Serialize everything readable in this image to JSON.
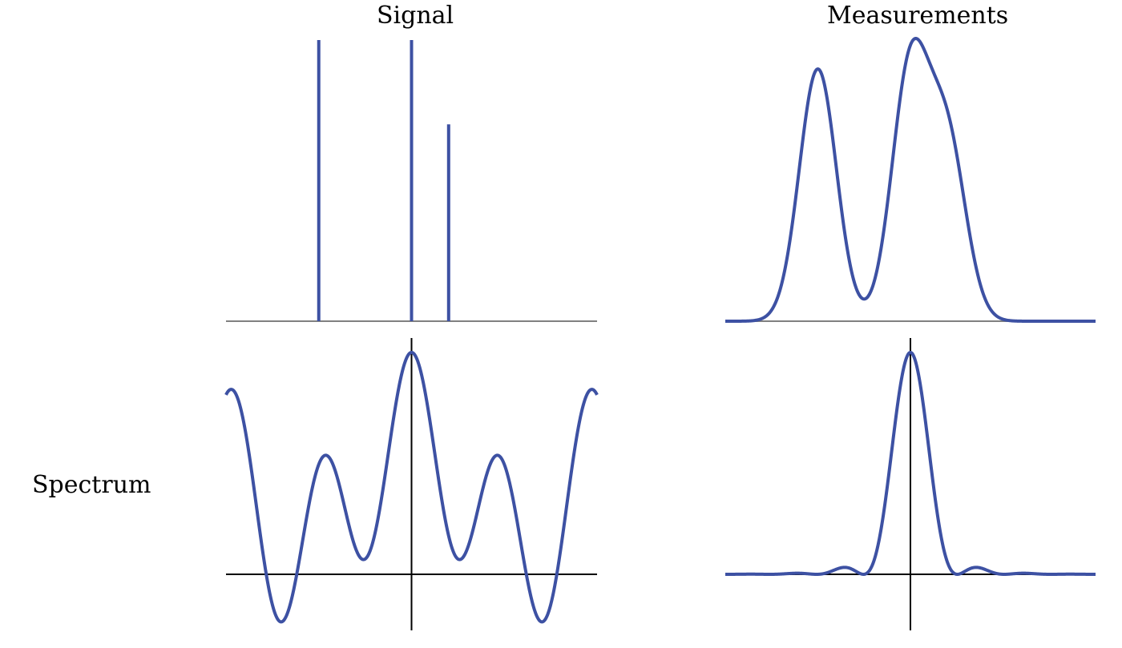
{
  "labels": {
    "signal_title": "Signal",
    "measurements_title": "Measurements",
    "spectrum_row": "Spectrum"
  },
  "colors": {
    "curve": "#3d51a3",
    "baseline": "#808080",
    "axis": "#000000"
  },
  "chart_data": [
    {
      "panel": "signal",
      "type": "stem",
      "x": [
        -1.0,
        0.0,
        0.4
      ],
      "values": [
        1.0,
        1.0,
        0.7
      ],
      "xlim": [
        -2,
        2
      ],
      "ylim": [
        0,
        1
      ]
    },
    {
      "panel": "measurements",
      "type": "line",
      "description": "sum of Gaussian blurs of the three spikes",
      "spikes_x": [
        -1.0,
        0.0,
        0.4
      ],
      "spikes_amp": [
        1.0,
        1.0,
        0.7
      ],
      "xlim": [
        -2,
        2
      ]
    },
    {
      "panel": "signal-spectrum",
      "type": "line",
      "description": "real part of Fourier transform of the spikes",
      "xlim": [
        -2,
        2
      ]
    },
    {
      "panel": "measurement-kernel-spectrum",
      "type": "line",
      "description": "low-pass kernel spectrum with small side lobes",
      "xlim": [
        -2,
        2
      ]
    }
  ]
}
